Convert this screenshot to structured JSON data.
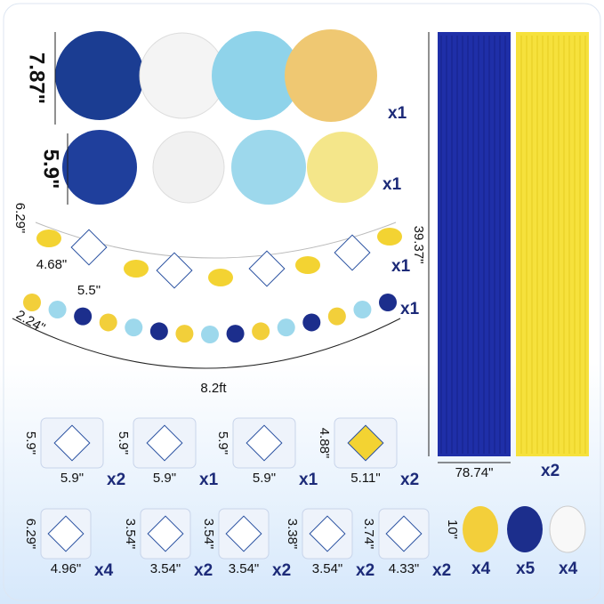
{
  "fans": {
    "height": "7.87\"",
    "qty": "x1"
  },
  "pompoms": {
    "height": "5.9\"",
    "qty": "x1"
  },
  "lemon_banner": {
    "height": "6.29\"",
    "width": "4.68\"",
    "tile": "5.5\"",
    "qty": "x1"
  },
  "dot_garland": {
    "dot": "2.24\"",
    "length": "8.2ft",
    "qty": "x1"
  },
  "curtains": {
    "height": "39.37\"",
    "width": "78.74\"",
    "qty": "x2"
  },
  "swirls": [
    {
      "height": "5.9\"",
      "width": "5.9\"",
      "qty": "x2"
    },
    {
      "height": "5.9\"",
      "width": "5.9\"",
      "qty": "x1"
    },
    {
      "height": "5.9\"",
      "width": "5.9\"",
      "qty": "x1"
    },
    {
      "height": "4.88\"",
      "width": "5.11\"",
      "qty": "x2"
    }
  ],
  "cutouts": [
    {
      "height": "6.29\"",
      "width": "4.96\"",
      "qty": "x4"
    },
    {
      "height": "3.54\"",
      "width": "3.54\"",
      "qty": "x2"
    },
    {
      "height": "3.54\"",
      "width": "3.54\"",
      "qty": "x2"
    },
    {
      "height": "3.38\"",
      "width": "3.54\"",
      "qty": "x2"
    },
    {
      "height": "3.74\"",
      "width": "4.33\"",
      "qty": "x2"
    }
  ],
  "balloons": {
    "size": "10\"",
    "qty": [
      "x4",
      "x5",
      "x4"
    ]
  }
}
